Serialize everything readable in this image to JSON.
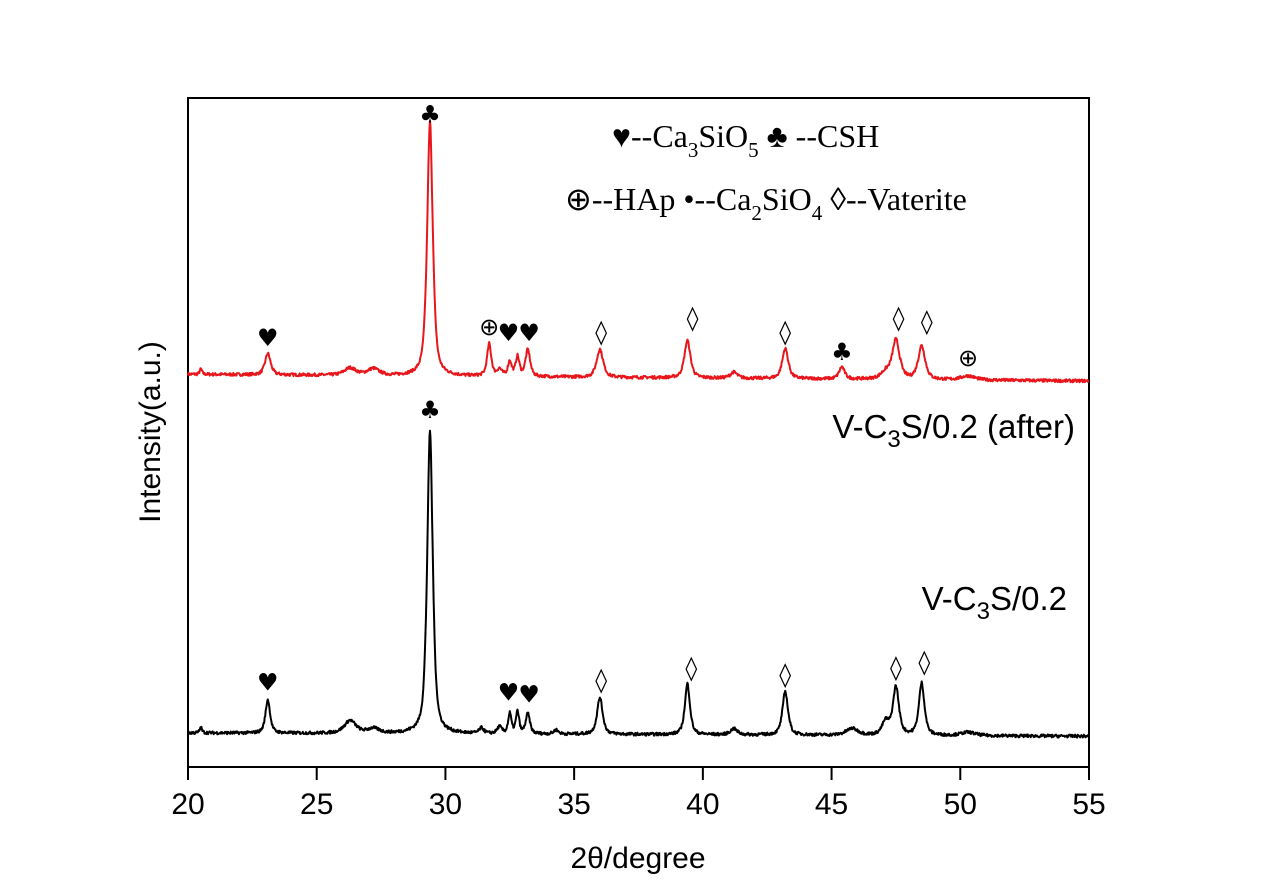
{
  "chart_data": {
    "type": "line",
    "title": "",
    "xlabel": "2θ/degree",
    "ylabel": "Intensity(a.u.)",
    "xlim": [
      20,
      55
    ],
    "ylim": [
      0,
      100
    ],
    "xticks": [
      "20",
      "25",
      "30",
      "35",
      "40",
      "45",
      "50",
      "55"
    ],
    "grid": false,
    "legend": {
      "placement": "top-right",
      "rows": [
        [
          {
            "symbol": "♥",
            "label_parts": [
              "--Ca",
              "3",
              "SiO",
              "5"
            ]
          },
          {
            "symbol": "♣",
            "label_parts": [
              " --CSH"
            ]
          }
        ],
        [
          {
            "symbol": "⊕",
            "label_parts": [
              "--HAp"
            ]
          },
          {
            "symbol": "•",
            "label_parts": [
              "--Ca",
              "2",
              "SiO",
              "4"
            ]
          },
          {
            "symbol": "◊",
            "label_parts": [
              "--Vaterite"
            ]
          }
        ]
      ]
    },
    "series": [
      {
        "name": "V-C3S/0.2 (after)",
        "label_parts": [
          "V-C",
          "3",
          "S/0.2 (after)"
        ],
        "color": "#e8161b",
        "baseline": [
          58.7,
          57.7
        ],
        "peaks": [
          [
            20.5,
            0.8,
            0.05
          ],
          [
            23.1,
            3.2,
            0.12
          ],
          [
            26.3,
            1.1,
            0.25
          ],
          [
            27.2,
            1.0,
            0.25
          ],
          [
            29.4,
            38.0,
            0.12
          ],
          [
            31.7,
            4.8,
            0.09
          ],
          [
            32.1,
            1.0,
            0.1
          ],
          [
            32.5,
            2.2,
            0.08
          ],
          [
            32.8,
            2.9,
            0.08
          ],
          [
            33.2,
            4.0,
            0.1
          ],
          [
            36.0,
            4.2,
            0.14
          ],
          [
            39.4,
            5.6,
            0.13
          ],
          [
            41.2,
            0.9,
            0.15
          ],
          [
            43.2,
            4.5,
            0.13
          ],
          [
            45.4,
            1.8,
            0.12
          ],
          [
            47.1,
            1.0,
            0.2
          ],
          [
            47.5,
            5.8,
            0.16
          ],
          [
            48.5,
            5.0,
            0.15
          ],
          [
            50.3,
            0.6,
            0.3
          ]
        ]
      },
      {
        "name": "V-C3S/0.2",
        "label_parts": [
          "V-C",
          "3",
          "S/0.2"
        ],
        "color": "#000000",
        "baseline": [
          5.1,
          4.6
        ],
        "peaks": [
          [
            20.5,
            0.8,
            0.05
          ],
          [
            23.1,
            5.0,
            0.1
          ],
          [
            26.3,
            1.9,
            0.25
          ],
          [
            27.2,
            0.7,
            0.25
          ],
          [
            29.4,
            45.3,
            0.12
          ],
          [
            31.4,
            0.8,
            0.1
          ],
          [
            32.1,
            1.0,
            0.1
          ],
          [
            32.5,
            3.0,
            0.07
          ],
          [
            32.8,
            3.3,
            0.07
          ],
          [
            33.2,
            3.0,
            0.09
          ],
          [
            34.3,
            0.6,
            0.1
          ],
          [
            36.0,
            5.5,
            0.12
          ],
          [
            39.4,
            7.6,
            0.11
          ],
          [
            41.2,
            0.9,
            0.15
          ],
          [
            43.2,
            6.5,
            0.12
          ],
          [
            45.8,
            1.0,
            0.25
          ],
          [
            47.1,
            2.0,
            0.15
          ],
          [
            47.5,
            7.2,
            0.13
          ],
          [
            48.5,
            7.8,
            0.12
          ],
          [
            50.3,
            0.5,
            0.3
          ]
        ]
      }
    ],
    "annotations": [
      {
        "series": "V-C3S/0.2 (after)",
        "symbol": "♥",
        "x": 23.1,
        "y": 64.1
      },
      {
        "series": "V-C3S/0.2 (after)",
        "symbol": "♣",
        "x": 29.4,
        "y": 97.5
      },
      {
        "series": "V-C3S/0.2 (after)",
        "symbol": "⊕",
        "x": 31.7,
        "y": 65.8
      },
      {
        "series": "V-C3S/0.2 (after)",
        "symbol": "♥",
        "x": 32.45,
        "y": 64.9
      },
      {
        "series": "V-C3S/0.2 (after)",
        "symbol": "♥",
        "x": 33.25,
        "y": 64.9
      },
      {
        "series": "V-C3S/0.2 (after)",
        "symbol": "◊",
        "x": 36.05,
        "y": 65.0
      },
      {
        "series": "V-C3S/0.2 (after)",
        "symbol": "◊",
        "x": 39.6,
        "y": 67.1
      },
      {
        "series": "V-C3S/0.2 (after)",
        "symbol": "◊",
        "x": 43.2,
        "y": 65.0
      },
      {
        "series": "V-C3S/0.2 (after)",
        "symbol": "♣",
        "x": 45.4,
        "y": 62.0
      },
      {
        "series": "V-C3S/0.2 (after)",
        "symbol": "◊",
        "x": 47.6,
        "y": 67.1
      },
      {
        "series": "V-C3S/0.2 (after)",
        "symbol": "◊",
        "x": 48.7,
        "y": 66.6
      },
      {
        "series": "V-C3S/0.2 (after)",
        "symbol": "⊕",
        "x": 50.3,
        "y": 61.1
      },
      {
        "series": "V-C3S/0.2",
        "symbol": "♥",
        "x": 23.1,
        "y": 12.6
      },
      {
        "series": "V-C3S/0.2",
        "symbol": "♣",
        "x": 29.4,
        "y": 53.4
      },
      {
        "series": "V-C3S/0.2",
        "symbol": "♥",
        "x": 32.45,
        "y": 11.1
      },
      {
        "series": "V-C3S/0.2",
        "symbol": "♥",
        "x": 33.25,
        "y": 10.8
      },
      {
        "series": "V-C3S/0.2",
        "symbol": "◊",
        "x": 36.05,
        "y": 13.0
      },
      {
        "series": "V-C3S/0.2",
        "symbol": "◊",
        "x": 39.55,
        "y": 14.8
      },
      {
        "series": "V-C3S/0.2",
        "symbol": "◊",
        "x": 43.2,
        "y": 13.8
      },
      {
        "series": "V-C3S/0.2",
        "symbol": "◊",
        "x": 47.5,
        "y": 14.9
      },
      {
        "series": "V-C3S/0.2",
        "symbol": "◊",
        "x": 48.6,
        "y": 15.7
      }
    ]
  }
}
